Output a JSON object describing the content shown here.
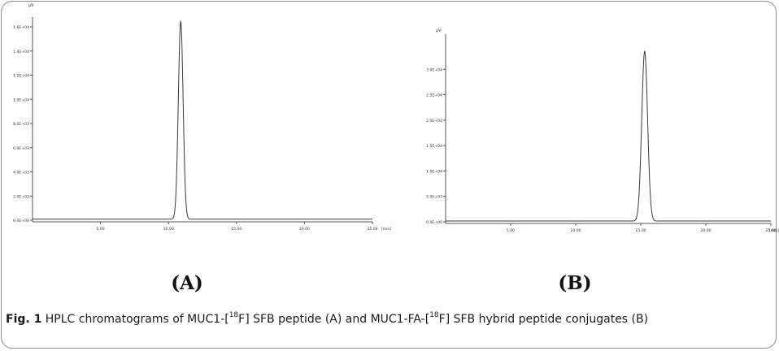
{
  "chart_data": [
    {
      "type": "line",
      "panel": "(A)",
      "ylabel": "µV",
      "xlabel": "[min]",
      "xlim": [
        0,
        25
      ],
      "ylim": [
        0,
        16000
      ],
      "x_ticks": [
        5,
        10,
        15,
        20,
        25
      ],
      "x_tick_labels": [
        "5.00",
        "10.00",
        "15.00",
        "20.00",
        "25.00"
      ],
      "y_ticks": [
        0,
        2000,
        4000,
        6000,
        8000,
        10000,
        12000,
        14000,
        16000
      ],
      "y_tick_labels": [
        "0.0E+00",
        "2.0E+03",
        "4.0E+03",
        "6.0E+03",
        "8.0E+03",
        "1.0E+04",
        "1.2E+04",
        "1.4E+04",
        "1.6E+04"
      ],
      "baseline": 80,
      "peaks": [
        {
          "retention_time_min": 10.9,
          "height": 16400,
          "width_min": 0.7
        }
      ],
      "grid": false,
      "line_color": "#3a3a3a"
    },
    {
      "type": "line",
      "panel": "(B)",
      "ylabel": "µV",
      "xlabel": "[min]",
      "xlim": [
        0,
        25
      ],
      "ylim": [
        0,
        35000
      ],
      "x_ticks": [
        5,
        10,
        15,
        20,
        25
      ],
      "x_tick_labels": [
        "5.00",
        "10.00",
        "15.00",
        "20.00",
        "25.00"
      ],
      "y_ticks": [
        0,
        5000,
        10000,
        15000,
        20000,
        25000,
        30000
      ],
      "y_tick_labels": [
        "0.0E+00",
        "5.0E+03",
        "1.0E+04",
        "1.5E+04",
        "2.0E+04",
        "2.5E+04",
        "3.0E+04"
      ],
      "baseline": 150,
      "peaks": [
        {
          "retention_time_min": 15.3,
          "height": 33400,
          "width_min": 0.9
        }
      ],
      "grid": false,
      "line_color": "#3a3a3a"
    }
  ],
  "caption": {
    "label": "Fig. 1",
    "text_parts": [
      "HPLC chromatograms of MUC1-[",
      "18",
      "F] SFB peptide (A) and MUC1-FA-[",
      "18",
      "F] SFB hybrid peptide conjugates (B)"
    ]
  }
}
